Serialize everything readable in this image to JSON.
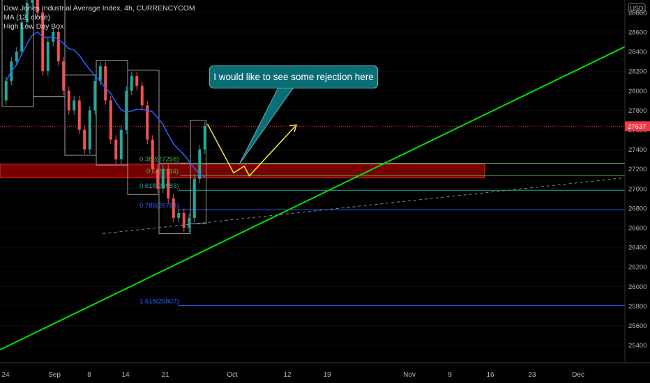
{
  "legend": {
    "title": "Dow Jones Industrial Average Index, 4h, CURRENCYCOM",
    "ma": "MA (13, close)",
    "hlbox": "High Low Day Box"
  },
  "currency": "USD",
  "last_price": "27637",
  "annotation": "I would like to see some rejection here",
  "colors": {
    "background": "#000000",
    "candle_up": "#26a69a",
    "candle_down": "#ef5350",
    "ma_line": "#2962ff",
    "day_box": "#9e9e9e",
    "trendline": "#00e000",
    "projection": "#ffeb3b",
    "zone_fill": "#8b0000",
    "zone_border": "#ff2a2a",
    "fib_green": "#4caf50",
    "fib_teal": "#26a69a",
    "fib_blue": "#2962ff",
    "price_tag": "#f23645"
  },
  "chart_data": {
    "type": "candlestick",
    "instrument": "Dow Jones Industrial Average Index",
    "timeframe": "4h",
    "y_axis": {
      "min": 25300,
      "max": 28950,
      "ticks": [
        25400,
        25600,
        25800,
        26000,
        26200,
        26400,
        26600,
        26800,
        27000,
        27200,
        27400,
        27600,
        27800,
        28000,
        28200,
        28400,
        28600,
        28800
      ]
    },
    "x_axis": {
      "ticks": [
        "24",
        "Sep",
        "8",
        "14",
        "21",
        "Oct",
        "12",
        "19",
        "Nov",
        "9",
        "16",
        "23",
        "Dec"
      ]
    },
    "price_series": [
      [
        27900,
        28100
      ],
      [
        28100,
        28300
      ],
      [
        28300,
        28400
      ],
      [
        28400,
        28700
      ],
      [
        28700,
        28900
      ],
      [
        28900,
        29000
      ],
      [
        29000,
        28800
      ],
      [
        28800,
        28200
      ],
      [
        28200,
        28500
      ],
      [
        28500,
        28600
      ],
      [
        28600,
        28300
      ],
      [
        28300,
        28000
      ],
      [
        28000,
        27800
      ],
      [
        27800,
        27900
      ],
      [
        27900,
        27600
      ],
      [
        27600,
        27400
      ],
      [
        27400,
        27800
      ],
      [
        27800,
        28100
      ],
      [
        28100,
        28250
      ],
      [
        28250,
        27900
      ],
      [
        27900,
        27500
      ],
      [
        27500,
        27300
      ],
      [
        27300,
        27600
      ],
      [
        27600,
        28000
      ],
      [
        28000,
        28150
      ],
      [
        28150,
        28050
      ],
      [
        28050,
        27850
      ],
      [
        27850,
        27500
      ],
      [
        27500,
        27200
      ],
      [
        27200,
        27000
      ],
      [
        27000,
        27200
      ],
      [
        27200,
        26900
      ],
      [
        26900,
        26700
      ],
      [
        26700,
        26750
      ],
      [
        26750,
        26600
      ],
      [
        26600,
        26700
      ],
      [
        26700,
        27100
      ],
      [
        27100,
        27400
      ],
      [
        27400,
        27637
      ]
    ],
    "moving_average": {
      "name": "MA (13, close)"
    },
    "fibonacci_levels": [
      {
        "label": "0.382(27258)",
        "ratio": 0.382,
        "price": 27258,
        "color": "#4caf50"
      },
      {
        "label": "0.5(27134)",
        "ratio": 0.5,
        "price": 27134,
        "color": "#4caf50"
      },
      {
        "label": "0.618(26983)",
        "ratio": 0.618,
        "price": 26983,
        "color": "#26a69a"
      },
      {
        "label": "0.786(26784)",
        "ratio": 0.786,
        "price": 26784,
        "color": "#2962ff"
      },
      {
        "label": "1.618(25807)",
        "ratio": 1.618,
        "price": 25807,
        "color": "#2962ff"
      }
    ],
    "zone": {
      "top": 27250,
      "bottom": 27110
    },
    "trendline": {
      "from": [
        -5,
        25240
      ],
      "to": [
        140,
        29000
      ]
    },
    "dashed_trendline": {
      "from": [
        19,
        26540
      ],
      "to": [
        180,
        27460
      ]
    },
    "projection_path": [
      [
        39,
        27660
      ],
      [
        44,
        27160
      ],
      [
        46,
        27230
      ],
      [
        47,
        27130
      ],
      [
        56,
        27650
      ]
    ],
    "current_price": 27637
  }
}
